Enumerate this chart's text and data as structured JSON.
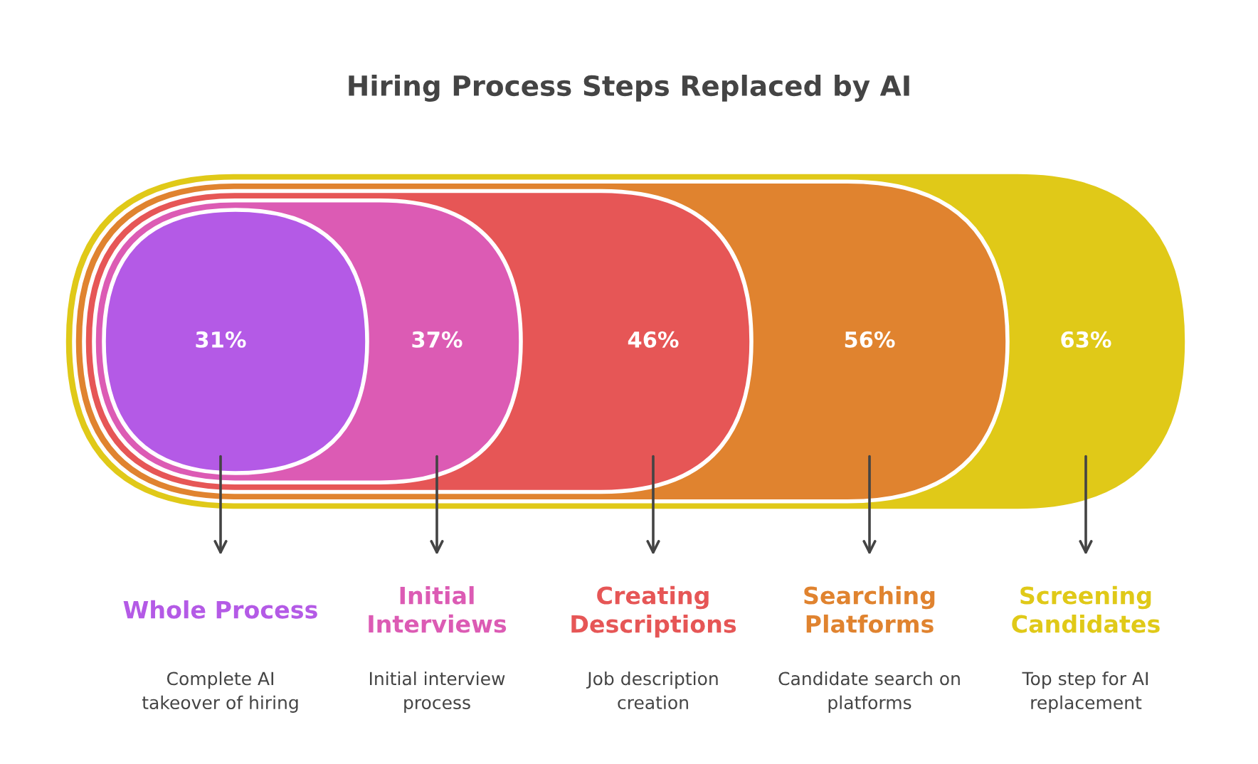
{
  "chart_data": {
    "type": "other",
    "title": "Hiring Process Steps Replaced by AI",
    "categories": [
      "Whole Process",
      "Initial\nInterviews",
      "Creating\nDescriptions",
      "Searching\nPlatforms",
      "Screening\nCandidates"
    ],
    "values": [
      31,
      37,
      46,
      56,
      63
    ],
    "value_labels": [
      "31%",
      "37%",
      "46%",
      "56%",
      "63%"
    ],
    "colors": [
      "#b45ae6",
      "#dc5bb4",
      "#e65656",
      "#e0832f",
      "#e0c918"
    ],
    "annotations": [
      "Complete AI\ntakeover of hiring",
      "Initial interview\nprocess",
      "Job description\ncreation",
      "Candidate search on\nplatforms",
      "Top step for AI\nreplacement"
    ]
  }
}
